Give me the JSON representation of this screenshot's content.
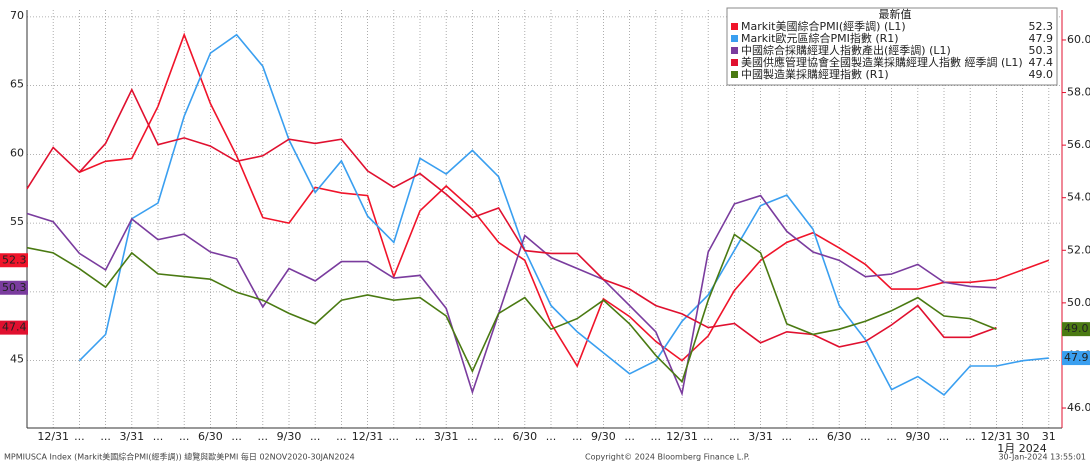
{
  "chart_data": {
    "type": "line",
    "legend_title": "最新值",
    "categories": [
      null,
      "12/31",
      "...",
      "...",
      "3/31",
      "...",
      "...",
      "6/30",
      "...",
      "...",
      "9/30",
      "...",
      "...",
      "12/31",
      "...",
      "...",
      "3/31",
      "...",
      "...",
      "6/30",
      "...",
      "...",
      "9/30",
      "...",
      "...",
      "12/31",
      "...",
      "...",
      "3/31",
      "...",
      "...",
      "6/30",
      "...",
      "...",
      "9/30",
      "...",
      "...",
      "12/31",
      "30",
      "31"
    ],
    "x_annotation": "1月 2024",
    "ylim": [
      40.1,
      70.5
    ],
    "yticks": [
      45,
      50,
      55,
      60,
      65,
      70
    ],
    "y2lim": [
      45.24,
      61.14
    ],
    "y2ticks": [
      {
        "value": 46,
        "label": "46.0"
      },
      {
        "value": 48,
        "label": "48.0"
      },
      {
        "value": 50,
        "label": "50.0"
      },
      {
        "value": 52,
        "label": "52.0"
      },
      {
        "value": 54,
        "label": "54.0"
      },
      {
        "value": 56,
        "label": "56.0"
      },
      {
        "value": 58,
        "label": "58.0"
      },
      {
        "value": 60,
        "label": "60.0"
      }
    ],
    "grid": true,
    "series": [
      {
        "name": "Markit美國綜合PMI(經季調) (L1)",
        "color": "#f0142a",
        "axis": "y",
        "values": [
          null,
          null,
          58.7,
          59.5,
          59.7,
          63.5,
          68.7,
          63.7,
          59.9,
          55.4,
          55.0,
          57.6,
          57.2,
          57.0,
          51.1,
          55.9,
          57.7,
          56.0,
          53.6,
          52.3,
          47.7,
          44.6,
          49.5,
          48.2,
          46.4,
          45.0,
          46.8,
          50.1,
          52.3,
          53.6,
          54.3,
          53.2,
          52.0,
          50.2,
          50.2,
          50.7,
          50.7,
          50.9,
          51.6,
          52.3
        ]
      },
      {
        "name": "Markit歐元區綜合PMI指數 (R1)",
        "color": "#3a9ff0",
        "axis": "y2",
        "values": [
          null,
          null,
          47.8,
          48.8,
          53.2,
          53.8,
          57.1,
          59.5,
          60.2,
          59.0,
          56.2,
          54.2,
          55.4,
          53.3,
          52.3,
          55.5,
          54.9,
          55.8,
          54.8,
          52.0,
          49.9,
          48.9,
          48.1,
          47.3,
          47.8,
          49.3,
          50.3,
          52.0,
          53.7,
          54.1,
          52.8,
          49.9,
          48.6,
          46.7,
          47.2,
          46.5,
          47.6,
          47.6,
          47.8,
          47.9
        ]
      },
      {
        "name": "中國綜合採購經理人指數產出(經季調) (L1)",
        "color": "#7a3c9e",
        "axis": "y",
        "values": [
          55.7,
          55.1,
          52.8,
          51.6,
          55.3,
          53.8,
          54.2,
          52.9,
          52.4,
          48.9,
          51.7,
          50.8,
          52.2,
          52.2,
          51.0,
          51.2,
          48.8,
          42.7,
          48.4,
          54.1,
          52.5,
          51.7,
          50.9,
          49.0,
          47.1,
          42.6,
          52.9,
          56.4,
          57.0,
          54.4,
          52.9,
          52.3,
          51.1,
          51.3,
          52.0,
          50.7,
          50.4,
          50.3,
          null,
          null
        ]
      },
      {
        "name": "美國供應管理協會全國製造業採購經理人指數 經季調 (L1)",
        "color": "#e0102f",
        "axis": "y",
        "values": [
          57.5,
          60.5,
          58.7,
          60.8,
          64.7,
          60.7,
          61.2,
          60.6,
          59.5,
          59.9,
          61.1,
          60.8,
          61.1,
          58.8,
          57.6,
          58.6,
          57.1,
          55.4,
          56.1,
          53.0,
          52.8,
          52.8,
          50.9,
          50.2,
          49.0,
          48.4,
          47.4,
          47.7,
          46.3,
          47.1,
          46.9,
          46.0,
          46.4,
          47.6,
          49.0,
          46.7,
          46.7,
          47.4,
          null,
          null
        ]
      },
      {
        "name": "中國製造業採購經理指數 (R1)",
        "color": "#4a7a12",
        "axis": "y2",
        "values": [
          52.1,
          51.9,
          51.3,
          50.6,
          51.9,
          51.1,
          51.0,
          50.9,
          50.4,
          50.1,
          49.6,
          49.2,
          50.1,
          50.3,
          50.1,
          50.2,
          49.5,
          47.4,
          49.6,
          50.2,
          49.0,
          49.4,
          50.1,
          49.2,
          48.0,
          47.0,
          50.1,
          52.6,
          51.9,
          49.2,
          48.8,
          49.0,
          49.3,
          49.7,
          50.2,
          49.5,
          49.4,
          49.0,
          null,
          null
        ],
        "value_labels": [
          null,
          null,
          null,
          null,
          null,
          null,
          null,
          null,
          null,
          null,
          null,
          null,
          null,
          null,
          null,
          null,
          null,
          null,
          null,
          null,
          null,
          null,
          null,
          null,
          null,
          null,
          null,
          null,
          null,
          null,
          null,
          null,
          null,
          null,
          null,
          null,
          null,
          "49.0",
          null,
          null
        ]
      }
    ],
    "footer": {
      "left": "MPMIUSCA Index (Markit美國綜合PMI(經季調)) 總覽與歐美PMI  每日 02NOV2020-30JAN2024",
      "center": "Copyright© 2024 Bloomberg Finance L.P.",
      "right": "30-Jan-2024 13:55:01"
    }
  }
}
